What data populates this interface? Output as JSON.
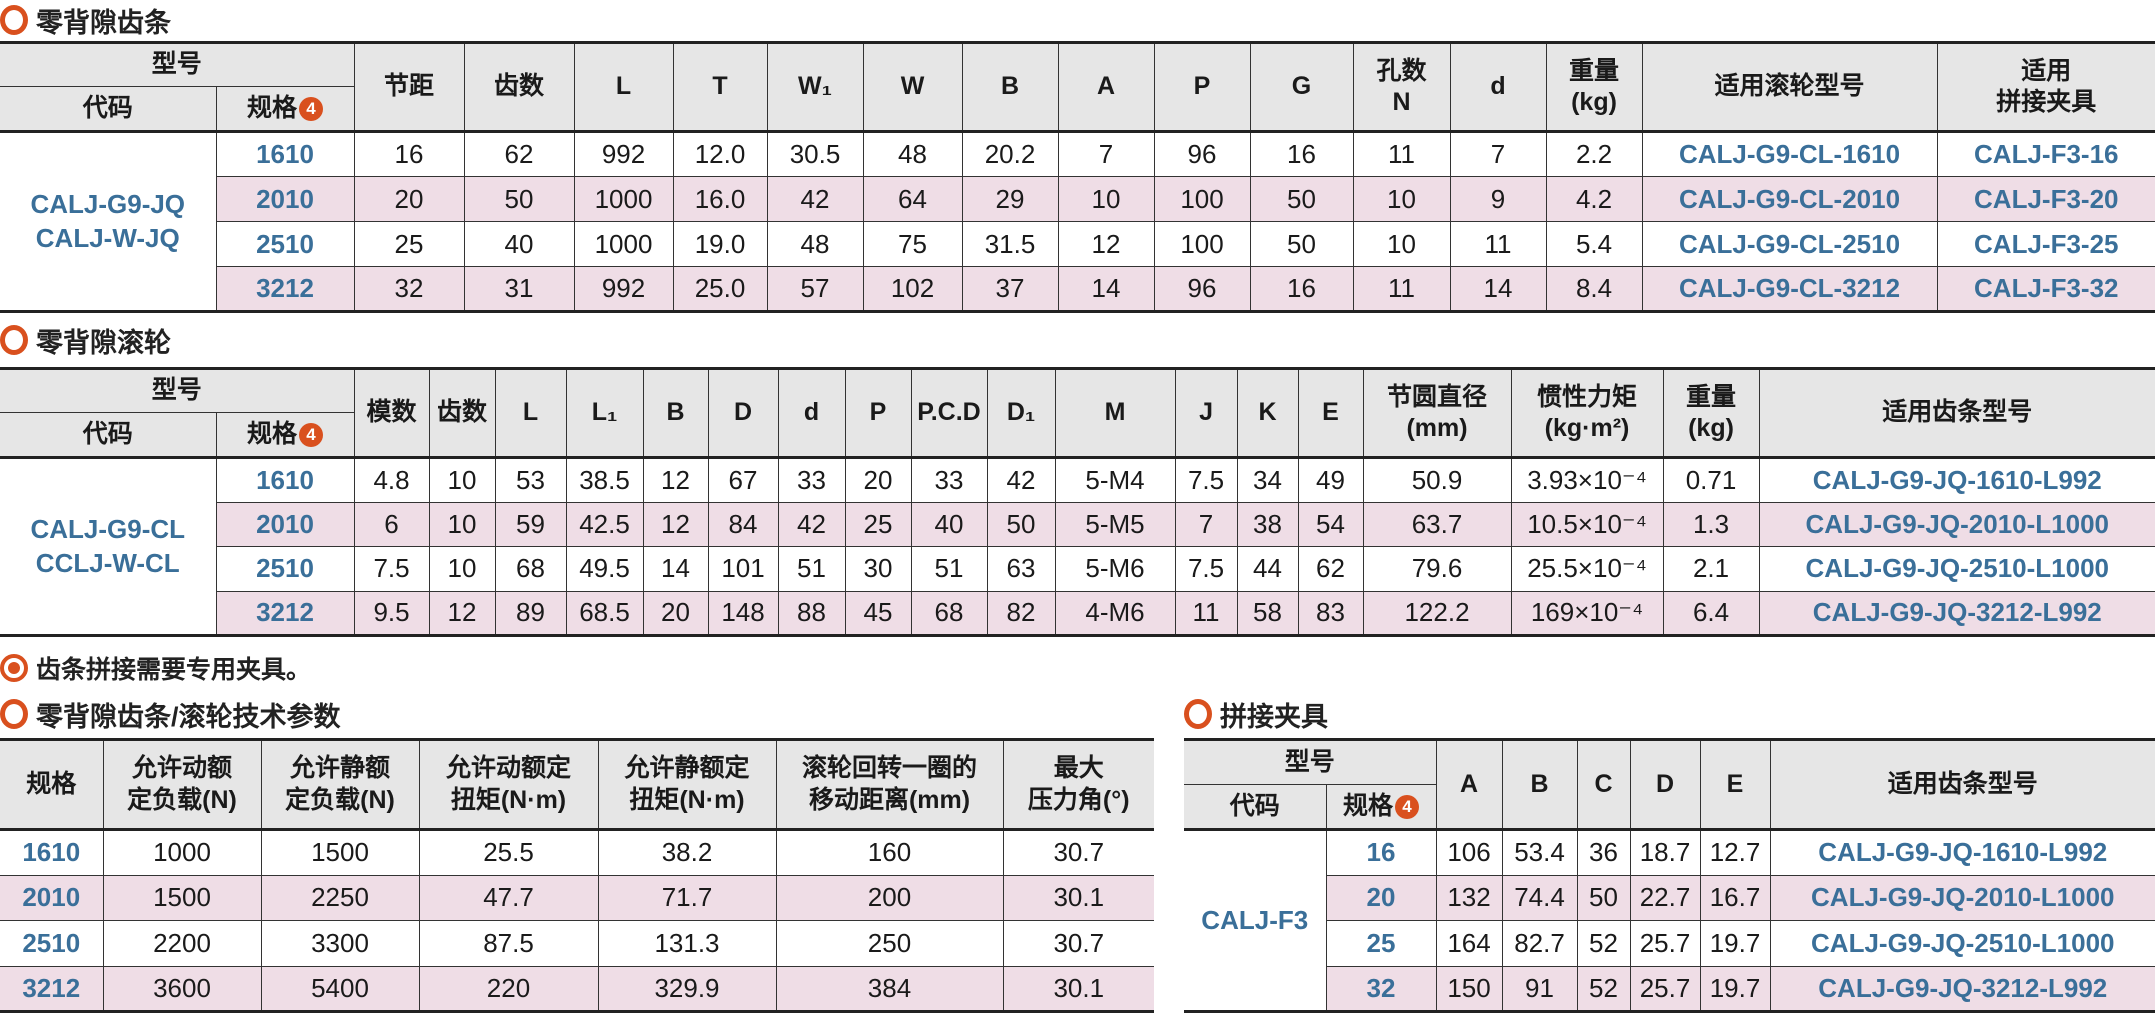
{
  "colors": {
    "accent": "#d9501e",
    "link_blue": "#3a6f99",
    "stripe": "#efdde6",
    "header_bg": "#e6e6e6"
  },
  "rack": {
    "title": "零背隙齿条",
    "header": {
      "model": "型号",
      "code": "代码",
      "spec": "规格",
      "badge": "4",
      "pitch": "节距",
      "teeth": "齿数",
      "L": "L",
      "T": "T",
      "W1": "W₁",
      "W": "W",
      "B": "B",
      "A": "A",
      "P": "P",
      "G": "G",
      "holes": "孔数\nN",
      "d": "d",
      "weight": "重量\n(kg)",
      "roller": "适用滚轮型号",
      "clamp": "适用\n拼接夹具"
    },
    "code_lines": [
      "CALJ-G9-JQ",
      "CALJ-W-JQ"
    ],
    "rows": [
      [
        "1610",
        "16",
        "62",
        "992",
        "12.0",
        "30.5",
        "48",
        "20.2",
        "7",
        "96",
        "16",
        "11",
        "7",
        "2.2",
        "CALJ-G9-CL-1610",
        "CALJ-F3-16"
      ],
      [
        "2010",
        "20",
        "50",
        "1000",
        "16.0",
        "42",
        "64",
        "29",
        "10",
        "100",
        "50",
        "10",
        "9",
        "4.2",
        "CALJ-G9-CL-2010",
        "CALJ-F3-20"
      ],
      [
        "2510",
        "25",
        "40",
        "1000",
        "19.0",
        "48",
        "75",
        "31.5",
        "12",
        "100",
        "50",
        "10",
        "11",
        "5.4",
        "CALJ-G9-CL-2510",
        "CALJ-F3-25"
      ],
      [
        "3212",
        "32",
        "31",
        "992",
        "25.0",
        "57",
        "102",
        "37",
        "14",
        "96",
        "16",
        "11",
        "14",
        "8.4",
        "CALJ-G9-CL-3212",
        "CALJ-F3-32"
      ]
    ]
  },
  "roller": {
    "title": "零背隙滚轮",
    "header": {
      "model": "型号",
      "code": "代码",
      "spec": "规格",
      "badge": "4",
      "module": "模数",
      "teeth": "齿数",
      "L": "L",
      "L1": "L₁",
      "B": "B",
      "D": "D",
      "d": "d",
      "P": "P",
      "PCD": "P.C.D",
      "D1": "D₁",
      "M": "M",
      "J": "J",
      "K": "K",
      "E": "E",
      "pcd_mm": "节圆直径\n(mm)",
      "inertia": "惯性力矩\n(kg·m²)",
      "weight": "重量\n(kg)",
      "rack": "适用齿条型号"
    },
    "code_lines": [
      "CALJ-G9-CL",
      "CCLJ-W-CL"
    ],
    "rows": [
      [
        "1610",
        "4.8",
        "10",
        "53",
        "38.5",
        "12",
        "67",
        "33",
        "20",
        "33",
        "42",
        "5-M4",
        "7.5",
        "34",
        "49",
        "50.9",
        "3.93×10⁻⁴",
        "0.71",
        "CALJ-G9-JQ-1610-L992"
      ],
      [
        "2010",
        "6",
        "10",
        "59",
        "42.5",
        "12",
        "84",
        "42",
        "25",
        "40",
        "50",
        "5-M5",
        "7",
        "38",
        "54",
        "63.7",
        "10.5×10⁻⁴",
        "1.3",
        "CALJ-G9-JQ-2010-L1000"
      ],
      [
        "2510",
        "7.5",
        "10",
        "68",
        "49.5",
        "14",
        "101",
        "51",
        "30",
        "51",
        "63",
        "5-M6",
        "7.5",
        "44",
        "62",
        "79.6",
        "25.5×10⁻⁴",
        "2.1",
        "CALJ-G9-JQ-2510-L1000"
      ],
      [
        "3212",
        "9.5",
        "12",
        "89",
        "68.5",
        "20",
        "148",
        "88",
        "45",
        "68",
        "82",
        "4-M6",
        "11",
        "58",
        "83",
        "122.2",
        "169×10⁻⁴",
        "6.4",
        "CALJ-G9-JQ-3212-L992"
      ]
    ]
  },
  "note": "齿条拼接需要专用夹具。",
  "params": {
    "title": "零背隙齿条/滚轮技术参数",
    "header": [
      "规格",
      "允许动额\n定负载(N)",
      "允许静额\n定负载(N)",
      "允许动额定\n扭矩(N·m)",
      "允许静额定\n扭矩(N·m)",
      "滚轮回转一圈的\n移动距离(mm)",
      "最大\n压力角(°)"
    ],
    "rows": [
      [
        "1610",
        "1000",
        "1500",
        "25.5",
        "38.2",
        "160",
        "30.7"
      ],
      [
        "2010",
        "1500",
        "2250",
        "47.7",
        "71.7",
        "200",
        "30.1"
      ],
      [
        "2510",
        "2200",
        "3300",
        "87.5",
        "131.3",
        "250",
        "30.7"
      ],
      [
        "3212",
        "3600",
        "5400",
        "220",
        "329.9",
        "384",
        "30.1"
      ]
    ]
  },
  "clamp": {
    "title": "拼接夹具",
    "header": {
      "model": "型号",
      "code": "代码",
      "spec": "规格",
      "badge": "4",
      "A": "A",
      "B": "B",
      "C": "C",
      "D": "D",
      "E": "E",
      "rack": "适用齿条型号"
    },
    "code_lines": [
      "CALJ-F3"
    ],
    "rows": [
      [
        "16",
        "106",
        "53.4",
        "36",
        "18.7",
        "12.7",
        "CALJ-G9-JQ-1610-L992"
      ],
      [
        "20",
        "132",
        "74.4",
        "50",
        "22.7",
        "16.7",
        "CALJ-G9-JQ-2010-L1000"
      ],
      [
        "25",
        "164",
        "82.7",
        "52",
        "25.7",
        "19.7",
        "CALJ-G9-JQ-2510-L1000"
      ],
      [
        "32",
        "150",
        "91",
        "52",
        "25.7",
        "19.7",
        "CALJ-G9-JQ-3212-L992"
      ]
    ]
  }
}
